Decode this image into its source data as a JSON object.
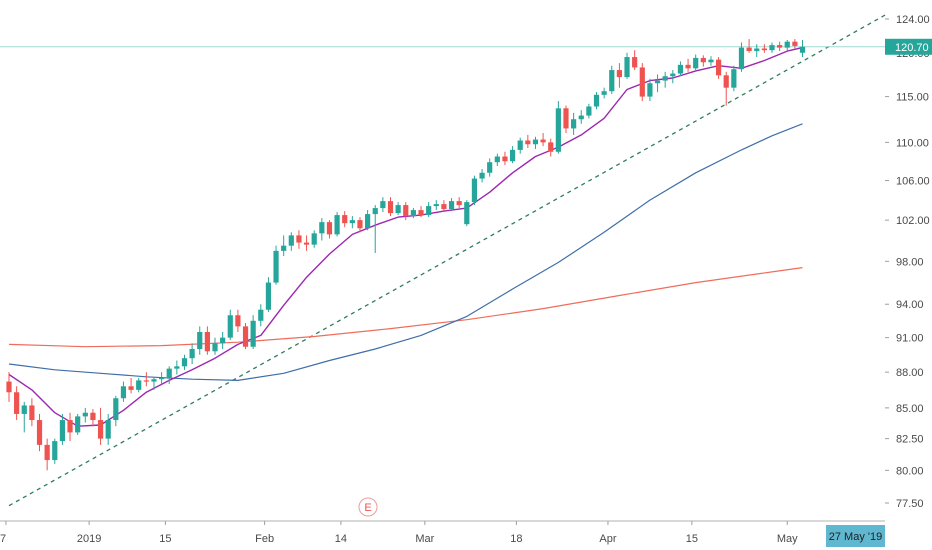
{
  "chart_data": {
    "type": "candlestick",
    "y_scale": "log",
    "ylim": [
      76.5,
      125.5
    ],
    "grid": false,
    "colors": {
      "up": "#26a69a",
      "down": "#ef5350",
      "ma_short": "#9c27b0",
      "ma_mid": "#3f6ea8",
      "ma_long": "#ef6c5c",
      "trendline": "#2e7d5b",
      "price_line": "#9fd9d2",
      "price_badge": "#26a69a",
      "date_badge": "#5fb7d0"
    },
    "y_ticks": [
      "124.00",
      "120.00",
      "115.00",
      "110.00",
      "106.00",
      "102.00",
      "98.00",
      "94.00",
      "91.00",
      "88.00",
      "85.00",
      "82.50",
      "80.00",
      "77.50"
    ],
    "x_labels": [
      "7",
      "2019",
      "15",
      "Feb",
      "14",
      "Mar",
      "18",
      "Apr",
      "15",
      "May"
    ],
    "last_price": "120.70",
    "date_badge": "27 May '19",
    "earnings_marker": "E",
    "candles": [
      [
        87.2,
        88.0,
        85.5,
        86.3
      ],
      [
        86.3,
        86.8,
        84.0,
        84.5
      ],
      [
        84.5,
        85.5,
        83.0,
        85.2
      ],
      [
        85.2,
        85.8,
        83.5,
        84.0
      ],
      [
        84.0,
        84.5,
        81.5,
        82.0
      ],
      [
        82.0,
        82.5,
        80.0,
        80.8
      ],
      [
        80.8,
        82.5,
        80.5,
        82.3
      ],
      [
        82.3,
        84.5,
        82.0,
        84.0
      ],
      [
        84.0,
        84.6,
        82.3,
        83.0
      ],
      [
        83.0,
        84.5,
        82.8,
        84.3
      ],
      [
        84.3,
        85.0,
        83.8,
        84.6
      ],
      [
        84.6,
        84.9,
        83.5,
        84.0
      ],
      [
        84.0,
        85.0,
        82.0,
        82.5
      ],
      [
        82.5,
        84.5,
        82.0,
        84.0
      ],
      [
        84.0,
        86.0,
        83.5,
        85.8
      ],
      [
        85.8,
        87.2,
        85.5,
        86.8
      ],
      [
        86.8,
        87.5,
        86.2,
        86.5
      ],
      [
        86.5,
        87.5,
        86.3,
        87.3
      ],
      [
        87.3,
        88.0,
        86.8,
        87.2
      ],
      [
        87.2,
        87.6,
        86.5,
        87.4
      ],
      [
        87.4,
        88.0,
        87.0,
        87.5
      ],
      [
        87.5,
        88.5,
        87.0,
        88.3
      ],
      [
        88.3,
        89.0,
        87.8,
        88.5
      ],
      [
        88.5,
        89.5,
        88.2,
        89.2
      ],
      [
        89.2,
        90.5,
        88.7,
        90.0
      ],
      [
        90.0,
        92.0,
        89.5,
        91.5
      ],
      [
        91.5,
        92.0,
        89.5,
        89.8
      ],
      [
        89.8,
        91.0,
        89.5,
        90.5
      ],
      [
        90.5,
        91.5,
        90.0,
        91.0
      ],
      [
        91.0,
        93.5,
        90.8,
        93.0
      ],
      [
        93.0,
        93.5,
        91.5,
        92.0
      ],
      [
        92.0,
        92.3,
        90.0,
        90.2
      ],
      [
        90.2,
        93.0,
        90.0,
        92.5
      ],
      [
        92.5,
        94.0,
        92.0,
        93.5
      ],
      [
        93.5,
        96.5,
        93.3,
        96.0
      ],
      [
        96.0,
        99.5,
        95.8,
        99.0
      ],
      [
        99.0,
        100.5,
        98.5,
        99.5
      ],
      [
        99.5,
        100.8,
        99.0,
        100.5
      ],
      [
        100.5,
        101.0,
        99.2,
        99.8
      ],
      [
        99.8,
        100.5,
        99.0,
        99.6
      ],
      [
        99.6,
        101.0,
        99.3,
        100.7
      ],
      [
        100.7,
        102.2,
        100.0,
        101.8
      ],
      [
        101.8,
        102.0,
        100.2,
        100.6
      ],
      [
        100.6,
        102.8,
        100.4,
        102.5
      ],
      [
        102.5,
        102.9,
        101.3,
        101.7
      ],
      [
        101.7,
        102.4,
        101.2,
        102.0
      ],
      [
        102.0,
        102.3,
        100.8,
        101.2
      ],
      [
        101.2,
        103.0,
        101.0,
        102.6
      ],
      [
        102.6,
        103.5,
        98.8,
        103.2
      ],
      [
        103.2,
        104.3,
        102.8,
        103.9
      ],
      [
        103.9,
        104.3,
        102.4,
        102.7
      ],
      [
        102.7,
        103.8,
        102.5,
        103.5
      ],
      [
        103.5,
        103.8,
        102.0,
        102.4
      ],
      [
        102.4,
        103.2,
        102.2,
        103.0
      ],
      [
        103.0,
        103.4,
        102.3,
        102.5
      ],
      [
        102.5,
        103.8,
        102.3,
        103.4
      ],
      [
        103.4,
        104.0,
        103.0,
        103.6
      ],
      [
        103.6,
        104.0,
        102.8,
        103.1
      ],
      [
        103.1,
        104.2,
        102.9,
        103.9
      ],
      [
        103.9,
        104.3,
        103.2,
        103.5
      ],
      [
        101.6,
        104.0,
        101.4,
        103.8
      ],
      [
        103.8,
        106.5,
        103.5,
        106.2
      ],
      [
        106.2,
        107.2,
        105.8,
        106.8
      ],
      [
        106.8,
        108.3,
        106.4,
        107.9
      ],
      [
        107.9,
        108.8,
        107.5,
        108.5
      ],
      [
        108.5,
        109.0,
        107.6,
        108.0
      ],
      [
        108.0,
        109.6,
        107.8,
        109.2
      ],
      [
        109.2,
        110.5,
        108.8,
        110.2
      ],
      [
        110.2,
        110.8,
        109.4,
        109.8
      ],
      [
        109.8,
        110.6,
        109.3,
        110.3
      ],
      [
        110.3,
        111.0,
        109.6,
        110.0
      ],
      [
        110.0,
        110.4,
        108.5,
        109.0
      ],
      [
        109.0,
        114.5,
        108.8,
        113.7
      ],
      [
        113.7,
        114.0,
        111.0,
        111.5
      ],
      [
        111.5,
        113.2,
        110.8,
        112.5
      ],
      [
        112.5,
        113.5,
        112.0,
        112.9
      ],
      [
        112.9,
        114.2,
        112.6,
        113.9
      ],
      [
        113.9,
        115.5,
        113.6,
        115.2
      ],
      [
        115.2,
        116.0,
        114.8,
        115.6
      ],
      [
        115.6,
        118.5,
        115.3,
        118.0
      ],
      [
        118.0,
        118.8,
        116.0,
        117.2
      ],
      [
        117.2,
        120.0,
        117.0,
        119.5
      ],
      [
        119.5,
        120.3,
        118.0,
        118.3
      ],
      [
        118.3,
        118.8,
        114.5,
        115.0
      ],
      [
        115.0,
        117.0,
        114.5,
        116.5
      ],
      [
        116.5,
        117.5,
        115.5,
        116.8
      ],
      [
        116.8,
        117.8,
        116.0,
        117.3
      ],
      [
        117.3,
        118.0,
        116.5,
        117.6
      ],
      [
        117.6,
        119.0,
        117.3,
        118.6
      ],
      [
        118.6,
        119.3,
        117.8,
        118.2
      ],
      [
        118.2,
        119.8,
        118.0,
        119.4
      ],
      [
        119.4,
        119.7,
        118.4,
        118.9
      ],
      [
        118.9,
        119.6,
        118.5,
        119.2
      ],
      [
        119.2,
        119.5,
        117.0,
        117.4
      ],
      [
        117.4,
        117.8,
        114.0,
        116.0
      ],
      [
        116.0,
        118.5,
        115.6,
        118.1
      ],
      [
        118.1,
        121.2,
        117.8,
        120.6
      ],
      [
        120.6,
        121.6,
        120.0,
        120.2
      ],
      [
        120.2,
        121.0,
        119.5,
        120.5
      ],
      [
        120.5,
        121.0,
        120.0,
        120.3
      ],
      [
        120.3,
        121.2,
        120.0,
        120.9
      ],
      [
        120.9,
        121.3,
        120.2,
        120.6
      ],
      [
        120.6,
        121.5,
        120.3,
        121.3
      ],
      [
        121.3,
        121.6,
        120.5,
        120.8
      ],
      [
        120.0,
        121.5,
        119.5,
        120.7
      ]
    ],
    "ma_short": [
      [
        0,
        87.8
      ],
      [
        3,
        86.5
      ],
      [
        6,
        84.6
      ],
      [
        9,
        83.5
      ],
      [
        12,
        83.6
      ],
      [
        15,
        84.8
      ],
      [
        18,
        86.3
      ],
      [
        21,
        87.3
      ],
      [
        24,
        88.2
      ],
      [
        27,
        89.2
      ],
      [
        30,
        90.4
      ],
      [
        33,
        91.2
      ],
      [
        36,
        93.9
      ],
      [
        39,
        96.5
      ],
      [
        42,
        98.7
      ],
      [
        45,
        100.6
      ],
      [
        48,
        101.5
      ],
      [
        51,
        102.3
      ],
      [
        54,
        102.5
      ],
      [
        57,
        102.9
      ],
      [
        60,
        103.2
      ],
      [
        63,
        104.8
      ],
      [
        66,
        106.8
      ],
      [
        69,
        108.5
      ],
      [
        72,
        109.5
      ],
      [
        75,
        110.8
      ],
      [
        78,
        112.6
      ],
      [
        81,
        115.8
      ],
      [
        84,
        116.8
      ],
      [
        87,
        117.1
      ],
      [
        90,
        117.9
      ],
      [
        93,
        118.5
      ],
      [
        96,
        118.2
      ],
      [
        99,
        119.1
      ],
      [
        102,
        120.2
      ],
      [
        104,
        120.6
      ]
    ],
    "ma_mid": [
      [
        0,
        88.7
      ],
      [
        6,
        88.2
      ],
      [
        12,
        87.9
      ],
      [
        18,
        87.6
      ],
      [
        24,
        87.4
      ],
      [
        30,
        87.3
      ],
      [
        36,
        87.9
      ],
      [
        42,
        89.0
      ],
      [
        48,
        90.0
      ],
      [
        54,
        91.2
      ],
      [
        60,
        92.9
      ],
      [
        66,
        95.4
      ],
      [
        72,
        97.9
      ],
      [
        78,
        100.8
      ],
      [
        84,
        104.0
      ],
      [
        90,
        106.8
      ],
      [
        96,
        109.2
      ],
      [
        100,
        110.7
      ],
      [
        104,
        112.0
      ]
    ],
    "ma_long": [
      [
        0,
        90.4
      ],
      [
        10,
        90.2
      ],
      [
        20,
        90.3
      ],
      [
        30,
        90.6
      ],
      [
        40,
        91.1
      ],
      [
        50,
        91.8
      ],
      [
        60,
        92.6
      ],
      [
        70,
        93.6
      ],
      [
        80,
        94.8
      ],
      [
        90,
        96.0
      ],
      [
        100,
        97.0
      ],
      [
        104,
        97.4
      ]
    ]
  }
}
